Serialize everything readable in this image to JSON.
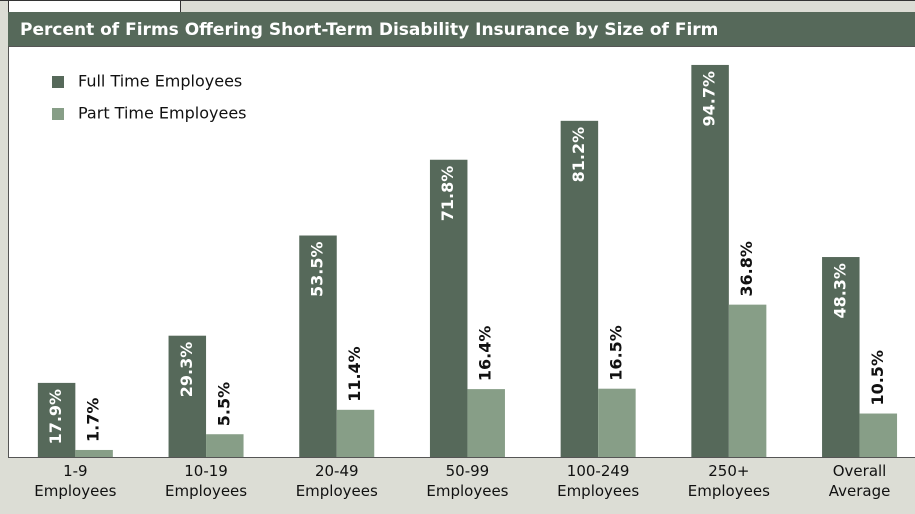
{
  "chart_data": {
    "type": "bar",
    "title": "Percent of Firms Offering Short-Term Disability Insurance by Size of Firm",
    "categories": [
      [
        "1-9",
        "Employees"
      ],
      [
        "10-19",
        "Employees"
      ],
      [
        "20-49",
        "Employees"
      ],
      [
        "50-99",
        "Employees"
      ],
      [
        "100-249",
        "Employees"
      ],
      [
        "250+",
        "Employees"
      ],
      [
        "Overall",
        "Average"
      ]
    ],
    "series": [
      {
        "name": "Full Time Employees",
        "color": "#56695a",
        "values": [
          17.9,
          29.3,
          53.5,
          71.8,
          81.2,
          94.7,
          48.3
        ],
        "value_labels": [
          "17.9%",
          "29.3%",
          "53.5%",
          "71.8%",
          "81.2%",
          "94.7%",
          "48.3%"
        ]
      },
      {
        "name": "Part Time Employees",
        "color": "#879e87",
        "values": [
          1.7,
          5.5,
          11.4,
          16.4,
          16.5,
          36.8,
          10.5
        ],
        "value_labels": [
          "1.7%",
          "5.5%",
          "11.4%",
          "16.4%",
          "16.5%",
          "36.8%",
          "10.5%"
        ]
      }
    ],
    "ylim": [
      0,
      100
    ],
    "legend": "upper left"
  }
}
